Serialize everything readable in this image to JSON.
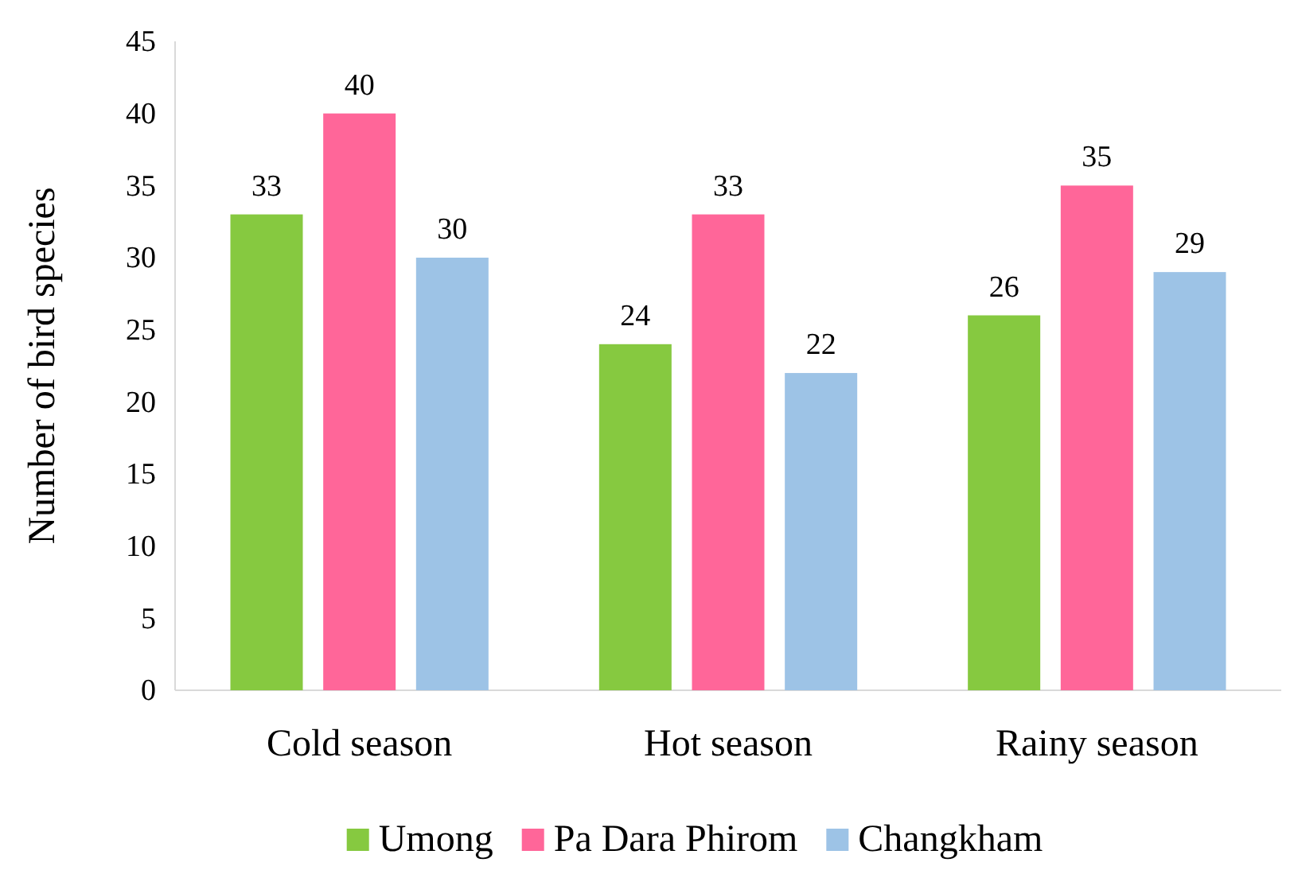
{
  "chart_data": {
    "type": "bar",
    "ylabel": "Number of bird species",
    "categories": [
      "Cold season",
      "Hot season",
      "Rainy season"
    ],
    "series": [
      {
        "name": "Umong",
        "color": "#86c940",
        "values": [
          33,
          24,
          26
        ]
      },
      {
        "name": "Pa Dara Phirom",
        "color": "#ff6699",
        "values": [
          40,
          33,
          35
        ]
      },
      {
        "name": "Changkham",
        "color": "#9dc3e6",
        "values": [
          30,
          22,
          29
        ]
      }
    ],
    "ylim": [
      0,
      45
    ],
    "yticks": [
      0,
      5,
      10,
      15,
      20,
      25,
      30,
      35,
      40,
      45
    ],
    "data_labels": true,
    "legend": "bottom",
    "grid": false
  }
}
